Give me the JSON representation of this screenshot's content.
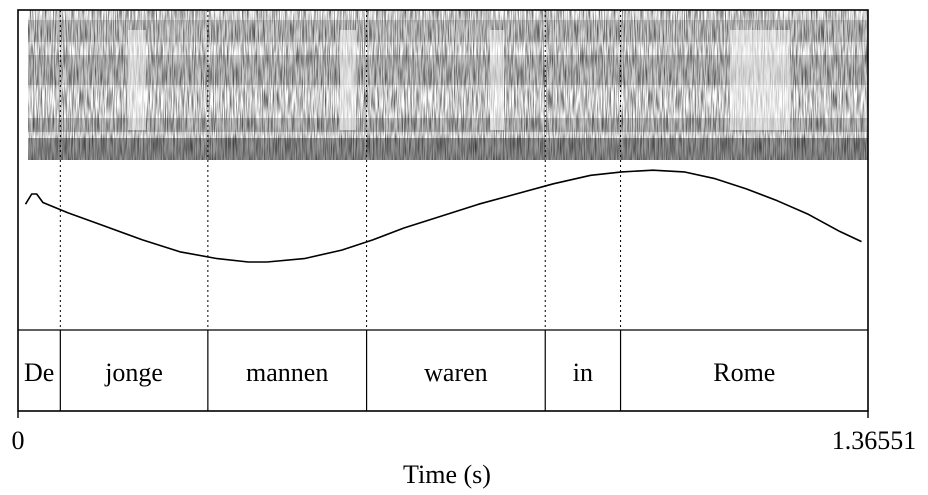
{
  "chart_data": {
    "type": "line",
    "xlabel": "Time (s)",
    "xlim": [
      0,
      1.36551
    ],
    "x_tick_labels": [
      "0",
      "1.36551"
    ],
    "ylabel": "",
    "ylim": [
      0,
      1
    ],
    "panels": [
      "spectrogram",
      "pitch-contour",
      "word-tier"
    ],
    "words": [
      {
        "label": "De",
        "start": 0.0,
        "end": 0.068
      },
      {
        "label": "jonge",
        "start": 0.068,
        "end": 0.305
      },
      {
        "label": "mannen",
        "start": 0.305,
        "end": 0.56
      },
      {
        "label": "waren",
        "start": 0.56,
        "end": 0.847
      },
      {
        "label": "in",
        "start": 0.847,
        "end": 0.968
      },
      {
        "label": "Rome",
        "start": 0.968,
        "end": 1.36551
      }
    ],
    "series": [
      {
        "values_x": [
          0.012,
          0.022,
          0.03,
          0.04,
          0.08,
          0.14,
          0.2,
          0.26,
          0.32,
          0.37,
          0.4,
          0.46,
          0.52,
          0.57,
          0.62,
          0.68,
          0.74,
          0.8,
          0.86,
          0.92,
          0.97,
          1.02,
          1.07,
          1.12,
          1.17,
          1.22,
          1.27,
          1.32,
          1.355
        ],
        "values_y": [
          0.74,
          0.8,
          0.8,
          0.75,
          0.69,
          0.61,
          0.53,
          0.46,
          0.42,
          0.4,
          0.4,
          0.42,
          0.47,
          0.53,
          0.6,
          0.67,
          0.74,
          0.8,
          0.86,
          0.91,
          0.93,
          0.94,
          0.93,
          0.89,
          0.83,
          0.76,
          0.68,
          0.58,
          0.52
        ]
      }
    ],
    "colors": {
      "line": "#000000",
      "background": "#ffffff"
    },
    "grid": false
  }
}
